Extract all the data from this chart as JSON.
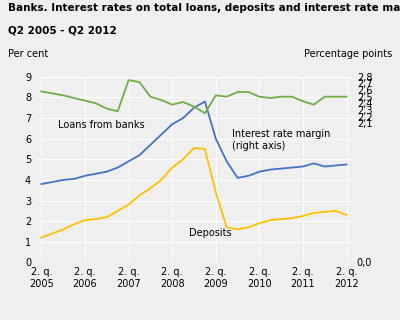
{
  "title1": "Banks. Interest rates on total loans, deposits and interest rate margin.",
  "title2": "Q2 2005 - Q2 2012",
  "label_left": "Per cent",
  "label_right": "Percentage points",
  "background_color": "#efefef",
  "loans_color": "#4472c4",
  "deposits_color": "#ffc000",
  "margin_color": "#70ad47",
  "loans_label": "Loans from banks",
  "deposits_label": "Deposits",
  "margin_label": "Interest rate margin\n(right axis)",
  "x_ticks": [
    0,
    4,
    8,
    12,
    16,
    20,
    24,
    28
  ],
  "x_tick_labels": [
    "2. q.\n2005",
    "2. q.\n2006",
    "2. q.\n2007",
    "2. q.\n2008",
    "2. q.\n2009",
    "2. q.\n2010",
    "2. q.\n2011",
    "2. q.\n2012"
  ],
  "ylim_left": [
    0,
    9
  ],
  "ylim_right": [
    0.0,
    2.8
  ],
  "y_ticks_left": [
    0,
    1,
    2,
    3,
    4,
    5,
    6,
    7,
    8,
    9
  ],
  "y_ticks_right": [
    0.0,
    2.1,
    2.2,
    2.3,
    2.4,
    2.5,
    2.6,
    2.7,
    2.8
  ],
  "y_tick_labels_right": [
    "0,0",
    "2,1",
    "2,2",
    "2,3",
    "2,4",
    "2,5",
    "2,6",
    "2,7",
    "2,8"
  ],
  "loans_y": [
    3.8,
    3.9,
    4.0,
    4.05,
    4.2,
    4.3,
    4.4,
    4.6,
    4.9,
    5.2,
    5.7,
    6.2,
    6.7,
    7.0,
    7.5,
    7.8,
    6.0,
    4.9,
    4.1,
    4.2,
    4.4,
    4.5,
    4.55,
    4.6,
    4.65,
    4.8,
    4.65,
    4.7,
    4.75
  ],
  "deposits_y": [
    1.2,
    1.4,
    1.6,
    1.85,
    2.05,
    2.1,
    2.2,
    2.5,
    2.8,
    3.25,
    3.6,
    4.0,
    4.6,
    5.0,
    5.55,
    5.5,
    3.4,
    1.7,
    1.6,
    1.7,
    1.9,
    2.05,
    2.1,
    2.15,
    2.25,
    2.4,
    2.45,
    2.5,
    2.3
  ],
  "margin_y": [
    2.58,
    2.55,
    2.52,
    2.48,
    2.44,
    2.4,
    2.32,
    2.28,
    2.75,
    2.72,
    2.5,
    2.45,
    2.38,
    2.42,
    2.35,
    2.25,
    2.52,
    2.5,
    2.57,
    2.57,
    2.5,
    2.48,
    2.5,
    2.5,
    2.43,
    2.38,
    2.5,
    2.5,
    2.5
  ]
}
